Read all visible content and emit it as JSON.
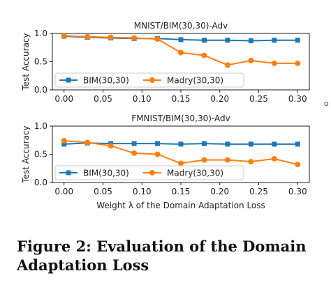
{
  "chart_data": [
    {
      "type": "line",
      "title": "MNIST/BIM(30,30)-Adv",
      "xlabel": "",
      "ylabel": "Test Accuracy",
      "x": [
        0.0,
        0.03,
        0.06,
        0.09,
        0.12,
        0.15,
        0.18,
        0.21,
        0.24,
        0.27,
        0.3
      ],
      "xticks": [
        "0.00",
        "0.05",
        "0.10",
        "0.15",
        "0.20",
        "0.25",
        "0.30"
      ],
      "xtick_values": [
        0.0,
        0.05,
        0.1,
        0.15,
        0.2,
        0.25,
        0.3
      ],
      "yticks": [
        "0.0",
        "0.5",
        "1.0"
      ],
      "ytick_values": [
        0.0,
        0.5,
        1.0
      ],
      "xlim": [
        -0.015,
        0.315
      ],
      "ylim": [
        0.0,
        1.0
      ],
      "grid": false,
      "legend": "bottom, single row",
      "series": [
        {
          "name": "BIM(30,30)",
          "color": "#1f77b4",
          "marker": "square",
          "values": [
            0.95,
            0.93,
            0.92,
            0.91,
            0.91,
            0.89,
            0.88,
            0.88,
            0.87,
            0.88,
            0.88
          ]
        },
        {
          "name": "Madry(30,30)",
          "color": "#ff7f0e",
          "marker": "circle",
          "values": [
            0.96,
            0.94,
            0.93,
            0.92,
            0.9,
            0.66,
            0.61,
            0.44,
            0.52,
            0.47,
            0.47
          ]
        }
      ]
    },
    {
      "type": "line",
      "title": "FMNIST/BIM(30,30)-Adv",
      "xlabel": "Weight λ of the Domain Adaptation Loss",
      "ylabel": "Test Accuracy",
      "x": [
        0.0,
        0.03,
        0.06,
        0.09,
        0.12,
        0.15,
        0.18,
        0.21,
        0.24,
        0.27,
        0.3
      ],
      "xticks": [
        "0.00",
        "0.05",
        "0.10",
        "0.15",
        "0.20",
        "0.25",
        "0.30"
      ],
      "xtick_values": [
        0.0,
        0.05,
        0.1,
        0.15,
        0.2,
        0.25,
        0.3
      ],
      "yticks": [
        "0.0",
        "0.5",
        "1.0"
      ],
      "ytick_values": [
        0.0,
        0.5,
        1.0
      ],
      "xlim": [
        -0.015,
        0.315
      ],
      "ylim": [
        0.0,
        1.0
      ],
      "grid": false,
      "legend": "bottom, single row",
      "series": [
        {
          "name": "BIM(30,30)",
          "color": "#1f77b4",
          "marker": "square",
          "values": [
            0.68,
            0.7,
            0.69,
            0.69,
            0.69,
            0.68,
            0.69,
            0.68,
            0.68,
            0.68,
            0.68
          ]
        },
        {
          "name": "Madry(30,30)",
          "color": "#ff7f0e",
          "marker": "circle",
          "values": [
            0.74,
            0.71,
            0.65,
            0.52,
            0.5,
            0.34,
            0.4,
            0.4,
            0.37,
            0.42,
            0.32
          ]
        }
      ]
    }
  ],
  "caption": "Figure 2: Evaluation of the Domain Adaptation Loss",
  "edge_mark": "o"
}
